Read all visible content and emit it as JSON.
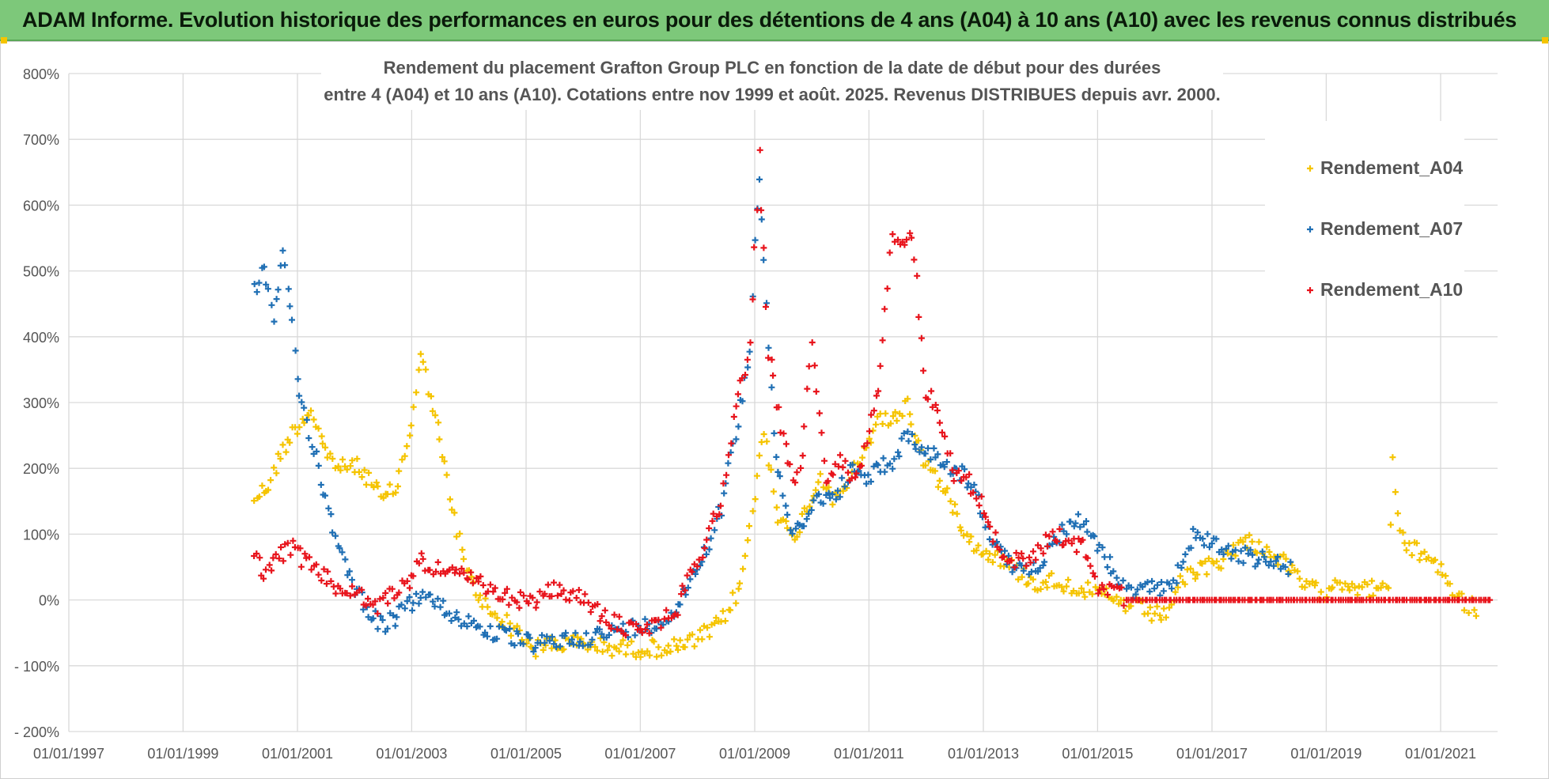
{
  "banner": {
    "title": "ADAM Informe. Evolution historique des performances en euros pour des détentions de 4 ans (A04) à 10 ans (A10) avec les revenus connus distribués"
  },
  "chart_data": {
    "type": "scatter",
    "title_line1": "Rendement du placement Grafton Group PLC en fonction de la date de début pour des durées",
    "title_line2": "entre 4 (A04) et 10 ans (A10). Cotations entre nov 1999 et août. 2025. Revenus DISTRIBUES depuis avr. 2000.",
    "marker": "+",
    "xlim": [
      "1997-01-01",
      "2021-12-31"
    ],
    "ylim": [
      -200,
      800
    ],
    "y_ticks": [
      -200,
      -100,
      0,
      100,
      200,
      300,
      400,
      500,
      600,
      700,
      800
    ],
    "y_tick_labels": [
      "- 200%",
      "- 100%",
      "0%",
      "100%",
      "200%",
      "300%",
      "400%",
      "500%",
      "600%",
      "700%",
      "800%"
    ],
    "x_ticks": [
      "1997-01-01",
      "1999-01-01",
      "2001-01-01",
      "2003-01-01",
      "2005-01-01",
      "2007-01-01",
      "2009-01-01",
      "2011-01-01",
      "2013-01-01",
      "2015-01-01",
      "2017-01-01",
      "2019-01-01",
      "2021-01-01"
    ],
    "x_tick_labels": [
      "01/01/1997",
      "01/01/1999",
      "01/01/2001",
      "01/01/2003",
      "01/01/2005",
      "01/01/2007",
      "01/01/2009",
      "01/01/2011",
      "01/01/2013",
      "01/01/2015",
      "01/01/2017",
      "01/01/2019",
      "01/01/2021"
    ],
    "grid": true,
    "legend_position": "top-right",
    "series": [
      {
        "name": "Rendement_A04",
        "color": "#f5c400",
        "points": [
          [
            "2000-04-01",
            155
          ],
          [
            "2000-07-01",
            175
          ],
          [
            "2000-10-01",
            230
          ],
          [
            "2001-01-01",
            265
          ],
          [
            "2001-04-01",
            290
          ],
          [
            "2001-07-01",
            225
          ],
          [
            "2001-10-01",
            200
          ],
          [
            "2002-01-01",
            205
          ],
          [
            "2002-04-01",
            185
          ],
          [
            "2002-07-01",
            150
          ],
          [
            "2002-10-01",
            175
          ],
          [
            "2003-01-01",
            270
          ],
          [
            "2003-03-01",
            370
          ],
          [
            "2003-06-01",
            280
          ],
          [
            "2003-09-01",
            160
          ],
          [
            "2003-12-01",
            55
          ],
          [
            "2004-03-01",
            5
          ],
          [
            "2004-06-01",
            -20
          ],
          [
            "2004-09-01",
            -35
          ],
          [
            "2004-12-01",
            -55
          ],
          [
            "2005-03-01",
            -75
          ],
          [
            "2005-06-01",
            -65
          ],
          [
            "2005-09-01",
            -68
          ],
          [
            "2005-12-01",
            -65
          ],
          [
            "2006-06-01",
            -72
          ],
          [
            "2006-12-01",
            -74
          ],
          [
            "2007-06-01",
            -73
          ],
          [
            "2007-09-01",
            -72
          ],
          [
            "2008-01-01",
            -60
          ],
          [
            "2008-06-01",
            -35
          ],
          [
            "2008-10-01",
            20
          ],
          [
            "2009-01-01",
            160
          ],
          [
            "2009-03-01",
            260
          ],
          [
            "2009-06-01",
            130
          ],
          [
            "2009-09-01",
            90
          ],
          [
            "2009-12-01",
            140
          ],
          [
            "2010-03-01",
            190
          ],
          [
            "2010-06-01",
            150
          ],
          [
            "2010-09-01",
            185
          ],
          [
            "2010-12-01",
            220
          ],
          [
            "2011-03-01",
            280
          ],
          [
            "2011-06-01",
            270
          ],
          [
            "2011-09-01",
            300
          ],
          [
            "2011-12-01",
            220
          ],
          [
            "2012-03-01",
            190
          ],
          [
            "2012-06-01",
            150
          ],
          [
            "2012-09-01",
            110
          ],
          [
            "2012-12-01",
            75
          ],
          [
            "2013-03-01",
            70
          ],
          [
            "2013-06-01",
            55
          ],
          [
            "2013-09-01",
            40
          ],
          [
            "2013-12-01",
            25
          ],
          [
            "2014-03-01",
            30
          ],
          [
            "2014-06-01",
            25
          ],
          [
            "2014-09-01",
            20
          ],
          [
            "2014-12-01",
            10
          ],
          [
            "2015-03-01",
            5
          ],
          [
            "2015-06-01",
            -5
          ],
          [
            "2015-09-01",
            -10
          ],
          [
            "2015-12-01",
            -20
          ],
          [
            "2016-03-01",
            -25
          ],
          [
            "2016-06-01",
            20
          ],
          [
            "2016-09-01",
            40
          ],
          [
            "2016-12-01",
            50
          ],
          [
            "2017-03-01",
            60
          ],
          [
            "2017-06-01",
            80
          ],
          [
            "2017-09-01",
            90
          ],
          [
            "2017-12-01",
            75
          ],
          [
            "2018-03-01",
            65
          ],
          [
            "2018-06-01",
            40
          ],
          [
            "2018-09-01",
            20
          ],
          [
            "2018-12-01",
            10
          ],
          [
            "2019-03-01",
            30
          ],
          [
            "2019-06-01",
            25
          ],
          [
            "2019-09-01",
            15
          ],
          [
            "2019-12-01",
            20
          ],
          [
            "2020-02-01",
            10
          ],
          [
            "2020-03-01",
            220
          ],
          [
            "2020-04-01",
            120
          ],
          [
            "2020-06-01",
            80
          ],
          [
            "2020-09-01",
            70
          ],
          [
            "2020-12-01",
            60
          ],
          [
            "2021-03-01",
            20
          ],
          [
            "2021-06-01",
            -5
          ],
          [
            "2021-09-01",
            -15
          ]
        ]
      },
      {
        "name": "Rendement_A07",
        "color": "#1f6fb4",
        "points": [
          [
            "2000-04-01",
            470
          ],
          [
            "2000-06-01",
            505
          ],
          [
            "2000-08-01",
            420
          ],
          [
            "2000-10-01",
            520
          ],
          [
            "2000-12-01",
            430
          ],
          [
            "2001-01-01",
            330
          ],
          [
            "2001-03-01",
            270
          ],
          [
            "2001-05-01",
            220
          ],
          [
            "2001-07-01",
            150
          ],
          [
            "2001-09-01",
            100
          ],
          [
            "2001-11-01",
            60
          ],
          [
            "2002-01-01",
            20
          ],
          [
            "2002-04-01",
            -15
          ],
          [
            "2002-07-01",
            -40
          ],
          [
            "2002-10-01",
            -25
          ],
          [
            "2003-01-01",
            -5
          ],
          [
            "2003-03-01",
            10
          ],
          [
            "2003-06-01",
            -5
          ],
          [
            "2003-09-01",
            -20
          ],
          [
            "2003-12-01",
            -30
          ],
          [
            "2004-03-01",
            -40
          ],
          [
            "2004-06-01",
            -50
          ],
          [
            "2004-09-01",
            -55
          ],
          [
            "2004-12-01",
            -62
          ],
          [
            "2005-03-01",
            -68
          ],
          [
            "2005-06-01",
            -65
          ],
          [
            "2005-09-01",
            -60
          ],
          [
            "2005-12-01",
            -58
          ],
          [
            "2006-03-01",
            -55
          ],
          [
            "2006-06-01",
            -52
          ],
          [
            "2006-09-01",
            -45
          ],
          [
            "2006-12-01",
            -42
          ],
          [
            "2007-03-01",
            -38
          ],
          [
            "2007-06-01",
            -30
          ],
          [
            "2007-09-01",
            -10
          ],
          [
            "2007-12-01",
            40
          ],
          [
            "2008-03-01",
            80
          ],
          [
            "2008-06-01",
            140
          ],
          [
            "2008-09-01",
            250
          ],
          [
            "2008-12-01",
            380
          ],
          [
            "2009-01-01",
            560
          ],
          [
            "2009-02-01",
            640
          ],
          [
            "2009-03-01",
            520
          ],
          [
            "2009-05-01",
            250
          ],
          [
            "2009-07-01",
            150
          ],
          [
            "2009-09-01",
            100
          ],
          [
            "2009-12-01",
            130
          ],
          [
            "2010-03-01",
            160
          ],
          [
            "2010-06-01",
            150
          ],
          [
            "2010-09-01",
            200
          ],
          [
            "2010-12-01",
            180
          ],
          [
            "2011-03-01",
            200
          ],
          [
            "2011-06-01",
            210
          ],
          [
            "2011-09-01",
            250
          ],
          [
            "2011-12-01",
            230
          ],
          [
            "2012-03-01",
            220
          ],
          [
            "2012-06-01",
            200
          ],
          [
            "2012-09-01",
            190
          ],
          [
            "2012-12-01",
            150
          ],
          [
            "2013-03-01",
            90
          ],
          [
            "2013-06-01",
            60
          ],
          [
            "2013-09-01",
            40
          ],
          [
            "2013-12-01",
            50
          ],
          [
            "2014-03-01",
            80
          ],
          [
            "2014-06-01",
            110
          ],
          [
            "2014-09-01",
            120
          ],
          [
            "2014-12-01",
            100
          ],
          [
            "2015-03-01",
            60
          ],
          [
            "2015-06-01",
            20
          ],
          [
            "2015-09-01",
            10
          ],
          [
            "2015-12-01",
            15
          ],
          [
            "2016-03-01",
            20
          ],
          [
            "2016-06-01",
            40
          ],
          [
            "2016-09-01",
            100
          ],
          [
            "2016-12-01",
            90
          ],
          [
            "2017-03-01",
            80
          ],
          [
            "2017-06-01",
            70
          ],
          [
            "2017-09-01",
            65
          ],
          [
            "2017-12-01",
            60
          ],
          [
            "2018-03-01",
            55
          ],
          [
            "2018-06-01",
            45
          ]
        ]
      },
      {
        "name": "Rendement_A10",
        "color": "#e8141c",
        "points": [
          [
            "2000-04-01",
            65
          ],
          [
            "2000-06-01",
            45
          ],
          [
            "2000-09-01",
            65
          ],
          [
            "2000-12-01",
            80
          ],
          [
            "2001-03-01",
            55
          ],
          [
            "2001-06-01",
            40
          ],
          [
            "2001-09-01",
            20
          ],
          [
            "2001-12-01",
            15
          ],
          [
            "2002-03-01",
            0
          ],
          [
            "2002-06-01",
            -10
          ],
          [
            "2002-09-01",
            10
          ],
          [
            "2002-12-01",
            25
          ],
          [
            "2003-03-01",
            60
          ],
          [
            "2003-06-01",
            50
          ],
          [
            "2003-09-01",
            40
          ],
          [
            "2003-12-01",
            35
          ],
          [
            "2004-03-01",
            25
          ],
          [
            "2004-06-01",
            10
          ],
          [
            "2004-09-01",
            5
          ],
          [
            "2004-12-01",
            0
          ],
          [
            "2005-03-01",
            -5
          ],
          [
            "2005-06-01",
            15
          ],
          [
            "2005-09-01",
            10
          ],
          [
            "2005-12-01",
            5
          ],
          [
            "2006-03-01",
            -10
          ],
          [
            "2006-06-01",
            -30
          ],
          [
            "2006-09-01",
            -40
          ],
          [
            "2006-12-01",
            -45
          ],
          [
            "2007-03-01",
            -40
          ],
          [
            "2007-06-01",
            -30
          ],
          [
            "2007-09-01",
            -10
          ],
          [
            "2007-12-01",
            50
          ],
          [
            "2008-03-01",
            90
          ],
          [
            "2008-06-01",
            150
          ],
          [
            "2008-09-01",
            300
          ],
          [
            "2008-12-01",
            380
          ],
          [
            "2009-02-01",
            680
          ],
          [
            "2009-04-01",
            380
          ],
          [
            "2009-06-01",
            280
          ],
          [
            "2009-09-01",
            180
          ],
          [
            "2009-11-01",
            220
          ],
          [
            "2010-01-01",
            400
          ],
          [
            "2010-04-01",
            170
          ],
          [
            "2010-07-01",
            210
          ],
          [
            "2010-10-01",
            180
          ],
          [
            "2011-01-01",
            250
          ],
          [
            "2011-03-01",
            330
          ],
          [
            "2011-06-01",
            560
          ],
          [
            "2011-08-01",
            550
          ],
          [
            "2011-10-01",
            560
          ],
          [
            "2012-01-01",
            320
          ],
          [
            "2012-04-01",
            280
          ],
          [
            "2012-07-01",
            190
          ],
          [
            "2012-10-01",
            180
          ],
          [
            "2013-01-01",
            140
          ],
          [
            "2013-04-01",
            80
          ],
          [
            "2013-07-01",
            60
          ],
          [
            "2013-10-01",
            60
          ],
          [
            "2014-01-01",
            80
          ],
          [
            "2014-04-01",
            100
          ],
          [
            "2014-07-01",
            90
          ],
          [
            "2014-10-01",
            80
          ],
          [
            "2015-01-01",
            20
          ],
          [
            "2015-04-01",
            20
          ],
          [
            "2015-07-01",
            0
          ],
          [
            "2016-01-01",
            0
          ],
          [
            "2016-07-01",
            0
          ],
          [
            "2017-01-01",
            0
          ],
          [
            "2017-07-01",
            0
          ],
          [
            "2018-01-01",
            0
          ],
          [
            "2018-07-01",
            0
          ],
          [
            "2019-01-01",
            0
          ],
          [
            "2019-07-01",
            0
          ],
          [
            "2020-01-01",
            0
          ],
          [
            "2020-07-01",
            0
          ],
          [
            "2021-01-01",
            0
          ],
          [
            "2021-07-01",
            0
          ],
          [
            "2021-12-01",
            0
          ]
        ]
      }
    ]
  }
}
